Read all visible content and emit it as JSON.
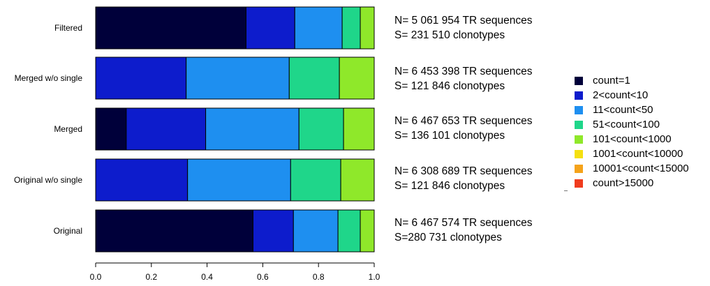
{
  "chart_data": {
    "type": "bar",
    "orientation": "horizontal",
    "stacked": true,
    "xlim": [
      0,
      1
    ],
    "xticks": [
      "0.0",
      "0.2",
      "0.4",
      "0.6",
      "0.8",
      "1.0"
    ],
    "xtick_values": [
      0,
      0.2,
      0.4,
      0.6,
      0.8,
      1.0
    ],
    "categories": [
      "Filtered",
      "Merged w/o single",
      "Merged",
      "Original w/o single",
      "Original"
    ],
    "series": [
      {
        "name": "count=1",
        "color": "#00003a",
        "values": [
          0.54,
          0.0,
          0.11,
          0.0,
          0.565
        ]
      },
      {
        "name": "2<count<10",
        "color": "#0d1ccc",
        "values": [
          0.175,
          0.325,
          0.285,
          0.33,
          0.145
        ]
      },
      {
        "name": "11<count<50",
        "color": "#1e8ff0",
        "values": [
          0.17,
          0.37,
          0.335,
          0.37,
          0.16
        ]
      },
      {
        "name": "51<count<100",
        "color": "#1fd68a",
        "values": [
          0.065,
          0.18,
          0.16,
          0.18,
          0.08
        ]
      },
      {
        "name": "101<count<1000",
        "color": "#8fe82a",
        "values": [
          0.05,
          0.125,
          0.11,
          0.12,
          0.05
        ]
      },
      {
        "name": "1001<count<10000",
        "color": "#f5e010",
        "values": [
          0,
          0,
          0,
          0,
          0
        ]
      },
      {
        "name": "10001<count<15000",
        "color": "#f5a31a",
        "values": [
          0,
          0,
          0,
          0,
          0
        ]
      },
      {
        "name": "count>15000",
        "color": "#f03c1e",
        "values": [
          0,
          0,
          0,
          0,
          0
        ]
      }
    ],
    "grid": false,
    "legend_position": "right"
  },
  "annotations": [
    {
      "n": "N= 5 061 954 TR sequences",
      "s": "S= 231 510 clonotypes"
    },
    {
      "n": "N= 6 453 398 TR sequences",
      "s": "S= 121 846 clonotypes"
    },
    {
      "n": "N= 6 467 653 TR sequences",
      "s": "S= 136 101 clonotypes"
    },
    {
      "n": "N= 6 308 689 TR sequences",
      "s": "S= 121 846 clonotypes"
    },
    {
      "n": "N= 6 467 574 TR sequences",
      "s": "S=280 731 clonotypes"
    }
  ]
}
